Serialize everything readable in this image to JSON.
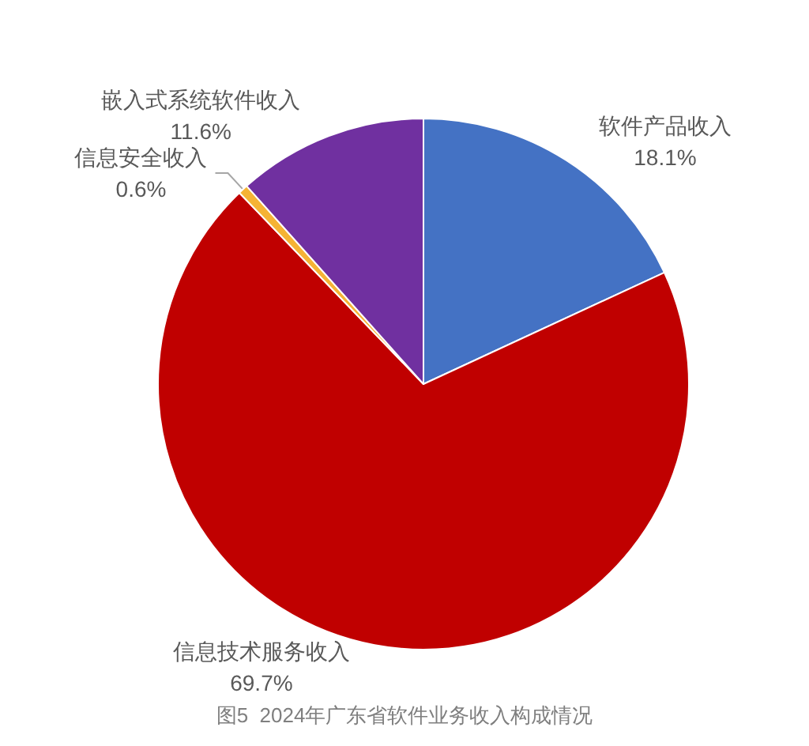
{
  "chart_data": {
    "type": "pie",
    "title": "图5  2024年广东省软件业务收入构成情况",
    "categories": [
      "软件产品收入",
      "信息技术服务收入",
      "信息安全收入",
      "嵌入式系统软件收入"
    ],
    "values": [
      18.1,
      69.7,
      0.6,
      11.6
    ],
    "value_labels": [
      "18.1%",
      "69.7%",
      "0.6%",
      "11.6%"
    ],
    "colors": [
      "#4472c4",
      "#c00000",
      "#f5b335",
      "#7030a0"
    ]
  }
}
